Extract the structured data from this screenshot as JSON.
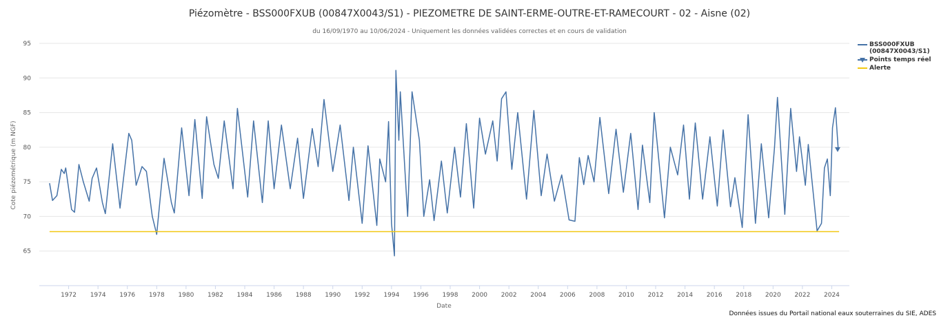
{
  "chart_data": {
    "type": "line",
    "title": "Piézomètre - BSS000FXUB (00847X0043/S1) - PIEZOMETRE DE SAINT-ERME-OUTRE-ET-RAMECOURT - 02 - Aisne (02)",
    "subtitle": "du 16/09/1970 au 10/06/2024 - Uniquement les données validées correctes et en cours de validation",
    "xlabel": "Date",
    "ylabel": "Cote piézométrique (m NGF)",
    "source": "Données issues du Portail national eaux souterraines du SIE, ADES",
    "xlim": [
      1970,
      2025.2
    ],
    "xticks": [
      1972,
      1974,
      1976,
      1978,
      1980,
      1982,
      1984,
      1986,
      1988,
      1990,
      1992,
      1994,
      1996,
      1998,
      2000,
      2002,
      2004,
      2006,
      2008,
      2010,
      2012,
      2014,
      2016,
      2018,
      2020,
      2022,
      2024
    ],
    "ylim": [
      60,
      95
    ],
    "yticks": [
      65,
      70,
      75,
      80,
      85,
      90,
      95
    ],
    "grid": true,
    "legend": "right",
    "series": [
      {
        "name": "BSS000FXUB (00847X0043/S1)",
        "color": "#4572a7",
        "marker": "none",
        "x": [
          1970.7,
          1970.9,
          1971.2,
          1971.5,
          1971.7,
          1971.8,
          1972.2,
          1972.4,
          1972.7,
          1973.0,
          1973.4,
          1973.6,
          1973.9,
          1974.3,
          1974.5,
          1975.0,
          1975.5,
          1976.1,
          1976.3,
          1976.6,
          1977.0,
          1977.3,
          1977.7,
          1978.0,
          1978.5,
          1979.0,
          1979.2,
          1979.7,
          1980.2,
          1980.6,
          1981.1,
          1981.4,
          1981.9,
          1982.2,
          1982.6,
          1983.2,
          1983.5,
          1984.2,
          1984.6,
          1985.2,
          1985.6,
          1986.0,
          1986.5,
          1987.1,
          1987.6,
          1988.0,
          1988.6,
          1989.0,
          1989.4,
          1990.0,
          1990.5,
          1991.1,
          1991.4,
          1992.0,
          1992.4,
          1993.0,
          1993.2,
          1993.6,
          1993.8,
          1994.0,
          1994.2,
          1994.3,
          1994.5,
          1994.6,
          1995.1,
          1995.4,
          1995.9,
          1996.2,
          1996.6,
          1996.9,
          1997.4,
          1997.8,
          1998.3,
          1998.7,
          1999.1,
          1999.6,
          2000.0,
          2000.4,
          2000.9,
          2001.2,
          2001.5,
          2001.8,
          2002.2,
          2002.6,
          2003.2,
          2003.7,
          2004.2,
          2004.6,
          2005.1,
          2005.6,
          2006.1,
          2006.5,
          2006.8,
          2007.1,
          2007.4,
          2007.8,
          2008.2,
          2008.8,
          2009.3,
          2009.8,
          2010.3,
          2010.8,
          2011.1,
          2011.6,
          2011.9,
          2012.6,
          2013.0,
          2013.5,
          2013.9,
          2014.3,
          2014.7,
          2015.2,
          2015.7,
          2016.2,
          2016.6,
          2017.1,
          2017.4,
          2017.9,
          2018.3,
          2018.8,
          2019.2,
          2019.7,
          2020.1,
          2020.3,
          2020.8,
          2021.2,
          2021.6,
          2021.8,
          2022.2,
          2022.4,
          2023.0,
          2023.3,
          2023.5,
          2023.7,
          2023.9,
          2024.05,
          2024.25,
          2024.44
        ],
        "values": [
          74.8,
          72.3,
          73,
          76.8,
          76.2,
          77,
          71,
          70.6,
          77.5,
          75,
          72.2,
          75.5,
          77,
          72,
          70.4,
          80.5,
          71.2,
          82,
          81,
          74.5,
          77.2,
          76.5,
          70,
          67.4,
          78.4,
          72,
          70.5,
          82.8,
          73,
          84,
          72.6,
          84.4,
          77.5,
          75.5,
          83.8,
          74,
          85.6,
          72.8,
          83.8,
          72,
          83.8,
          74,
          83.2,
          74,
          81.3,
          72.6,
          82.7,
          77.2,
          86.9,
          76.5,
          83.2,
          72.3,
          80,
          69,
          80.2,
          68.7,
          78.3,
          75,
          83.7,
          69,
          64.3,
          91.1,
          81,
          88,
          70,
          88,
          81,
          70,
          75.3,
          69.4,
          78,
          70.5,
          80,
          72.8,
          83.4,
          71.2,
          84.2,
          79,
          83.8,
          78,
          87,
          88,
          76.8,
          85,
          72.5,
          85.3,
          73,
          79,
          72.2,
          76,
          69.5,
          69.3,
          78.5,
          74.6,
          78.8,
          75,
          84.3,
          73.3,
          82.6,
          73.5,
          82,
          71,
          80.3,
          72,
          85,
          69.8,
          80,
          76,
          83.2,
          72.5,
          83.5,
          72.5,
          81.5,
          71.5,
          82.5,
          71.4,
          75.6,
          68.4,
          84.7,
          69,
          80.5,
          69.8,
          80,
          87.2,
          70.3,
          85.6,
          76.5,
          81.5,
          74.5,
          80.4,
          67.9,
          69,
          77,
          78.3,
          73,
          82.8,
          85.7,
          79.7
        ]
      },
      {
        "name": "Points temps réel",
        "color": "#4572a7",
        "marker": "triangle-down",
        "x": [
          2024.4
        ],
        "values": [
          79.7
        ]
      },
      {
        "name": "Alerte",
        "color": "#f2c811",
        "marker": "none",
        "x": [
          1970.7,
          2024.5
        ],
        "values": [
          67.8,
          67.8
        ]
      }
    ]
  }
}
